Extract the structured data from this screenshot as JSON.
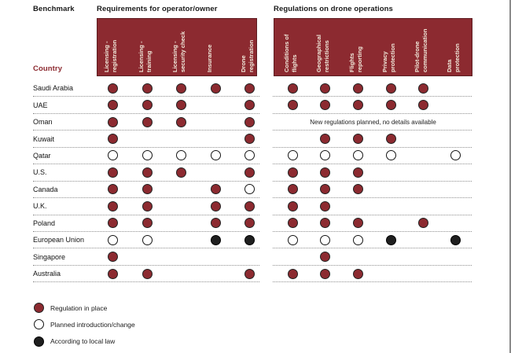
{
  "colors": {
    "accent": "#8C2A30",
    "band_border": "#5E1D22",
    "dot_black": "#1F1F1F"
  },
  "chart_data": {
    "type": "table",
    "benchmark_label": "Benchmark",
    "country_label": "Country",
    "group_titles": [
      "Requirements for operator/owner",
      "Regulations on drone operations"
    ],
    "columns_group1": [
      "Licensing -\nregistration",
      "Licensing -\ntraining",
      "Licensing -\nsecurity check",
      "Insurance",
      "Drone\nregistration"
    ],
    "columns_group2": [
      "Conditions of\nflights",
      "Geographical\nrestrictions",
      "Flights\nreporting",
      "Privacy\nprotection",
      "Pilot-drone\ncommunication",
      "Data\nprotection"
    ],
    "symbol_meanings": {
      "r": "Regulation in place",
      "p": "Planned introduction/change",
      "l": "According to local law",
      "": "none"
    },
    "rows": [
      {
        "country": "Saudi Arabia",
        "group1": [
          "r",
          "r",
          "r",
          "r",
          "r"
        ],
        "group2": [
          "r",
          "r",
          "r",
          "r",
          "r",
          ""
        ]
      },
      {
        "country": "UAE",
        "group1": [
          "r",
          "r",
          "r",
          "",
          "r"
        ],
        "group2": [
          "r",
          "r",
          "r",
          "r",
          "r",
          ""
        ]
      },
      {
        "country": "Oman",
        "group1": [
          "r",
          "r",
          "r",
          "",
          "r"
        ],
        "group2": [
          "",
          "",
          "",
          "",
          "",
          ""
        ],
        "note": "New regulations planned, no details available"
      },
      {
        "country": "Kuwait",
        "group1": [
          "r",
          "",
          "",
          "",
          "r"
        ],
        "group2": [
          "",
          "r",
          "r",
          "r",
          "",
          ""
        ]
      },
      {
        "country": "Qatar",
        "group1": [
          "p",
          "p",
          "p",
          "p",
          "p"
        ],
        "group2": [
          "p",
          "p",
          "p",
          "p",
          "",
          "p"
        ]
      },
      {
        "country": "U.S.",
        "group1": [
          "r",
          "r",
          "r",
          "",
          "r"
        ],
        "group2": [
          "r",
          "r",
          "r",
          "",
          "",
          ""
        ]
      },
      {
        "country": "Canada",
        "group1": [
          "r",
          "r",
          "",
          "r",
          "p"
        ],
        "group2": [
          "r",
          "r",
          "r",
          "",
          "",
          ""
        ]
      },
      {
        "country": "U.K.",
        "group1": [
          "r",
          "r",
          "",
          "r",
          "r"
        ],
        "group2": [
          "r",
          "r",
          "",
          "",
          "",
          ""
        ]
      },
      {
        "country": "Poland",
        "group1": [
          "r",
          "r",
          "",
          "r",
          "r"
        ],
        "group2": [
          "r",
          "r",
          "r",
          "",
          "r",
          ""
        ]
      },
      {
        "country": "European Union",
        "group1": [
          "p",
          "p",
          "",
          "l",
          "l"
        ],
        "group2": [
          "p",
          "p",
          "p",
          "l",
          "",
          "l"
        ]
      },
      {
        "country": "Singapore",
        "group1": [
          "r",
          "",
          "",
          "",
          ""
        ],
        "group2": [
          "",
          "r",
          "",
          "",
          "",
          ""
        ]
      },
      {
        "country": "Australia",
        "group1": [
          "r",
          "r",
          "",
          "",
          "r"
        ],
        "group2": [
          "r",
          "r",
          "r",
          "",
          "",
          ""
        ]
      }
    ],
    "legend": [
      {
        "value": "r",
        "label": "Regulation in place"
      },
      {
        "value": "p",
        "label": "Planned introduction/change"
      },
      {
        "value": "l",
        "label": "According to local law"
      }
    ]
  }
}
